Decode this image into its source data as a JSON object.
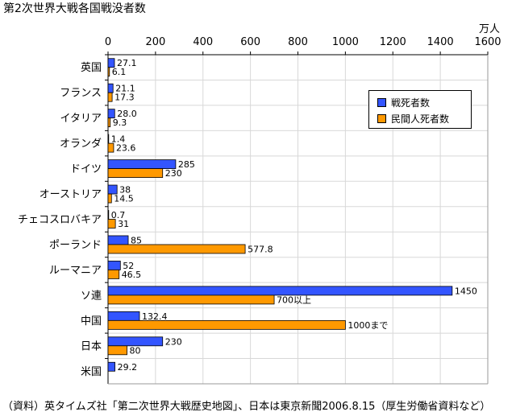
{
  "title": "第2次世界大戦各国戦没者数",
  "source": "（資料）英タイムズ社「第二次世界大戦歴史地図」、日本は東京新聞2006.8.15（厚生労働省資料など）",
  "colors": {
    "military": "#3355ff",
    "civilian": "#ff9900"
  },
  "chart_data": {
    "type": "bar",
    "orientation": "horizontal",
    "unit": "万人",
    "xlim": [
      0,
      1600
    ],
    "ticks": [
      "0",
      "200",
      "400",
      "600",
      "800",
      "1000",
      "1200",
      "1400",
      "1600"
    ],
    "tick_values": [
      0,
      200,
      400,
      600,
      800,
      1000,
      1200,
      1400,
      1600
    ],
    "grid": true,
    "legend_position": "top-right",
    "categories": [
      "英国",
      "フランス",
      "イタリア",
      "オランダ",
      "ドイツ",
      "オーストリア",
      "チェコスロバキア",
      "ポーランド",
      "ルーマニア",
      "ソ連",
      "中国",
      "日本",
      "米国"
    ],
    "series": [
      {
        "name": "戦死者数",
        "values": [
          27.1,
          21.1,
          28.0,
          1.4,
          285,
          38,
          0.7,
          85,
          52,
          1450,
          132.4,
          230,
          29.2
        ],
        "labels": [
          "27.1",
          "21.1",
          "28.0",
          "1.4",
          "285",
          "38",
          "0.7",
          "85",
          "52",
          "1450",
          "132.4",
          "230",
          "29.2"
        ]
      },
      {
        "name": "民間人死者数",
        "values": [
          6.1,
          17.3,
          9.3,
          23.6,
          230,
          14.5,
          31,
          577.8,
          46.5,
          700,
          1000,
          80,
          null
        ],
        "labels": [
          "6.1",
          "17.3",
          "9.3",
          "23.6",
          "230",
          "14.5",
          "31",
          "577.8",
          "46.5",
          "700以上",
          "1000まで",
          "80",
          ""
        ]
      }
    ]
  }
}
